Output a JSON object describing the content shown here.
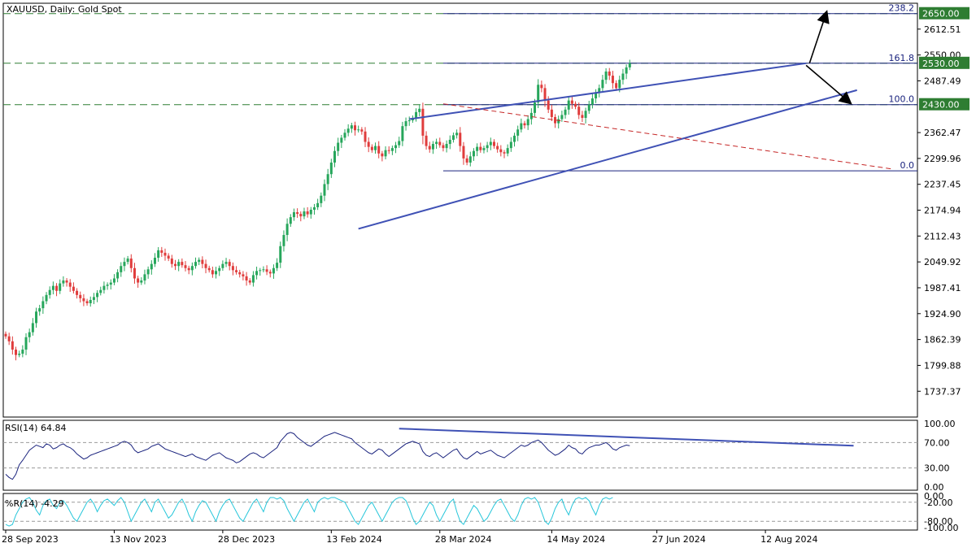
{
  "chart_data": {
    "type": "candlestick",
    "title": "XAUUSD, Daily:  Gold Spot",
    "price_ticks": [
      "2612.51",
      "2550.00",
      "2487.49",
      "2362.47",
      "2299.96",
      "2237.45",
      "2174.94",
      "2112.43",
      "2049.92",
      "1987.41",
      "1924.90",
      "1862.39",
      "1799.88",
      "1737.37"
    ],
    "price_tick_values": [
      2612.51,
      2550.0,
      2487.49,
      2362.47,
      2299.96,
      2237.45,
      2174.94,
      2112.43,
      2049.92,
      1987.41,
      1924.9,
      1862.39,
      1799.88,
      1737.37
    ],
    "price_range": [
      1675,
      2675
    ],
    "date_labels": [
      "28 Sep 2023",
      "13 Nov 2023",
      "28 Dec 2023",
      "13 Feb 2024",
      "28 Mar 2024",
      "14 May 2024",
      "27 Jun 2024",
      "12 Aug 2024"
    ],
    "date_label_bars": [
      0,
      32,
      64,
      96,
      128,
      161,
      192,
      224
    ],
    "level_badges": [
      {
        "text": "2650.00",
        "value": 2650
      },
      {
        "text": "2530.00",
        "value": 2530
      },
      {
        "text": "2430.00",
        "value": 2430
      }
    ],
    "fibonacci": {
      "levels": [
        {
          "label": "238.2",
          "value": 2650
        },
        {
          "label": "161.8",
          "value": 2530
        },
        {
          "label": "100.0",
          "value": 2430
        },
        {
          "label": "0.0",
          "value": 2270
        }
      ],
      "start_bar": 129
    },
    "horizontal_levels": [
      2650,
      2530,
      2430
    ],
    "channel": {
      "upper": {
        "from": [
          119,
          2395
        ],
        "to": [
          236,
          2530
        ]
      },
      "lower": {
        "from": [
          104,
          2130
        ],
        "to": [
          251,
          2465
        ]
      }
    },
    "regression_line": {
      "from": [
        129,
        2432
      ],
      "to": [
        261,
        2275
      ]
    },
    "arrows": [
      {
        "from": [
          237,
          2530
        ],
        "to": [
          242,
          2653
        ]
      },
      {
        "from": [
          236,
          2525
        ],
        "to": [
          249,
          2434
        ]
      }
    ],
    "closes": [
      1870,
      1858,
      1838,
      1825,
      1828,
      1838,
      1868,
      1880,
      1902,
      1930,
      1938,
      1955,
      1970,
      1982,
      1992,
      1980,
      1998,
      2005,
      2000,
      1990,
      1980,
      1970,
      1962,
      1955,
      1950,
      1958,
      1965,
      1975,
      1982,
      1992,
      1995,
      2000,
      2010,
      2025,
      2040,
      2050,
      2058,
      2035,
      2010,
      2000,
      2005,
      2020,
      2032,
      2045,
      2060,
      2078,
      2072,
      2065,
      2058,
      2045,
      2040,
      2050,
      2042,
      2035,
      2030,
      2040,
      2050,
      2055,
      2045,
      2035,
      2030,
      2020,
      2028,
      2035,
      2045,
      2050,
      2040,
      2030,
      2025,
      2020,
      2015,
      2005,
      2000,
      2018,
      2028,
      2030,
      2032,
      2026,
      2022,
      2035,
      2048,
      2088,
      2115,
      2142,
      2158,
      2170,
      2166,
      2160,
      2172,
      2165,
      2176,
      2182,
      2192,
      2210,
      2238,
      2262,
      2290,
      2318,
      2338,
      2350,
      2362,
      2372,
      2380,
      2368,
      2370,
      2365,
      2340,
      2328,
      2320,
      2330,
      2312,
      2305,
      2320,
      2318,
      2325,
      2332,
      2342,
      2378,
      2390,
      2392,
      2398,
      2412,
      2420,
      2355,
      2330,
      2322,
      2335,
      2340,
      2332,
      2325,
      2335,
      2345,
      2356,
      2362,
      2330,
      2300,
      2290,
      2305,
      2318,
      2328,
      2320,
      2325,
      2332,
      2340,
      2330,
      2322,
      2315,
      2312,
      2325,
      2340,
      2355,
      2370,
      2385,
      2380,
      2395,
      2410,
      2435,
      2478,
      2470,
      2440,
      2418,
      2400,
      2385,
      2395,
      2405,
      2418,
      2440,
      2432,
      2425,
      2405,
      2398,
      2415,
      2430,
      2445,
      2460,
      2470,
      2490,
      2510,
      2500,
      2482,
      2470,
      2490,
      2505,
      2520,
      2530
    ],
    "rsi": {
      "label": "RSI(14) 64.84",
      "ticks": [
        "100.00",
        "70.00",
        "30.00",
        "0.00"
      ],
      "tick_values": [
        100,
        70,
        30,
        0
      ],
      "levels": [
        70,
        30
      ],
      "values": [
        20,
        15,
        12,
        20,
        35,
        42,
        50,
        58,
        62,
        66,
        64,
        62,
        68,
        66,
        60,
        62,
        66,
        68,
        64,
        62,
        58,
        52,
        48,
        44,
        46,
        50,
        52,
        54,
        56,
        58,
        60,
        62,
        64,
        66,
        70,
        72,
        70,
        66,
        58,
        54,
        56,
        58,
        60,
        64,
        66,
        68,
        64,
        60,
        58,
        56,
        54,
        52,
        50,
        48,
        50,
        52,
        48,
        46,
        44,
        42,
        46,
        50,
        52,
        54,
        50,
        46,
        44,
        42,
        38,
        40,
        44,
        48,
        52,
        54,
        52,
        48,
        46,
        50,
        54,
        58,
        62,
        72,
        78,
        84,
        86,
        84,
        78,
        74,
        70,
        66,
        64,
        68,
        72,
        76,
        80,
        82,
        84,
        86,
        84,
        82,
        80,
        78,
        76,
        70,
        66,
        62,
        58,
        54,
        52,
        56,
        60,
        58,
        52,
        48,
        52,
        56,
        60,
        64,
        68,
        70,
        72,
        70,
        68,
        56,
        50,
        48,
        52,
        54,
        50,
        46,
        50,
        54,
        58,
        60,
        52,
        46,
        44,
        48,
        52,
        56,
        52,
        54,
        56,
        58,
        54,
        50,
        48,
        46,
        50,
        54,
        58,
        62,
        66,
        64,
        66,
        70,
        72,
        74,
        70,
        64,
        58,
        54,
        50,
        52,
        56,
        60,
        66,
        62,
        60,
        54,
        52,
        58,
        62,
        64,
        66,
        66,
        68,
        70,
        66,
        60,
        58,
        62,
        64,
        66,
        65
      ]
    },
    "rsi_trendline": {
      "from": [
        116,
        92
      ],
      "to": [
        250,
        65
      ]
    },
    "williams": {
      "label": "%R(14) -4.29",
      "ticks": [
        "0.00",
        "-20.00",
        "-80.00",
        "-100.00"
      ],
      "tick_values": [
        0,
        -20,
        -80,
        -100
      ],
      "levels": [
        -20,
        -80
      ],
      "values": [
        -90,
        -95,
        -90,
        -60,
        -40,
        -20,
        -10,
        -5,
        -20,
        -45,
        -60,
        -30,
        -15,
        -10,
        -30,
        -40,
        -20,
        -15,
        -30,
        -50,
        -70,
        -80,
        -60,
        -40,
        -20,
        -10,
        -25,
        -50,
        -30,
        -15,
        -10,
        -20,
        -30,
        -15,
        -5,
        -20,
        -50,
        -80,
        -60,
        -40,
        -20,
        -10,
        -30,
        -50,
        -20,
        -10,
        -30,
        -50,
        -70,
        -60,
        -40,
        -20,
        -10,
        -30,
        -60,
        -80,
        -50,
        -30,
        -15,
        -20,
        -40,
        -60,
        -80,
        -50,
        -30,
        -15,
        -10,
        -30,
        -50,
        -70,
        -80,
        -60,
        -40,
        -20,
        -10,
        -30,
        -50,
        -20,
        -5,
        -5,
        -10,
        -5,
        -15,
        -40,
        -60,
        -80,
        -60,
        -40,
        -20,
        -10,
        -30,
        -50,
        -20,
        -10,
        -5,
        -10,
        -5,
        -5,
        -10,
        -15,
        -20,
        -40,
        -60,
        -80,
        -90,
        -70,
        -50,
        -30,
        -20,
        -40,
        -60,
        -80,
        -60,
        -40,
        -20,
        -10,
        -5,
        -5,
        -15,
        -40,
        -70,
        -90,
        -80,
        -60,
        -40,
        -20,
        -30,
        -60,
        -80,
        -60,
        -40,
        -20,
        -10,
        -50,
        -80,
        -90,
        -70,
        -50,
        -30,
        -40,
        -60,
        -80,
        -70,
        -50,
        -30,
        -15,
        -10,
        -30,
        -50,
        -70,
        -80,
        -60,
        -30,
        -10,
        -5,
        -10,
        -5,
        -20,
        -50,
        -80,
        -90,
        -70,
        -40,
        -20,
        -10,
        -40,
        -60,
        -30,
        -10,
        -5,
        -10,
        -5,
        -15,
        -40,
        -60,
        -30,
        -10,
        -5,
        -10,
        -5
      ]
    }
  }
}
